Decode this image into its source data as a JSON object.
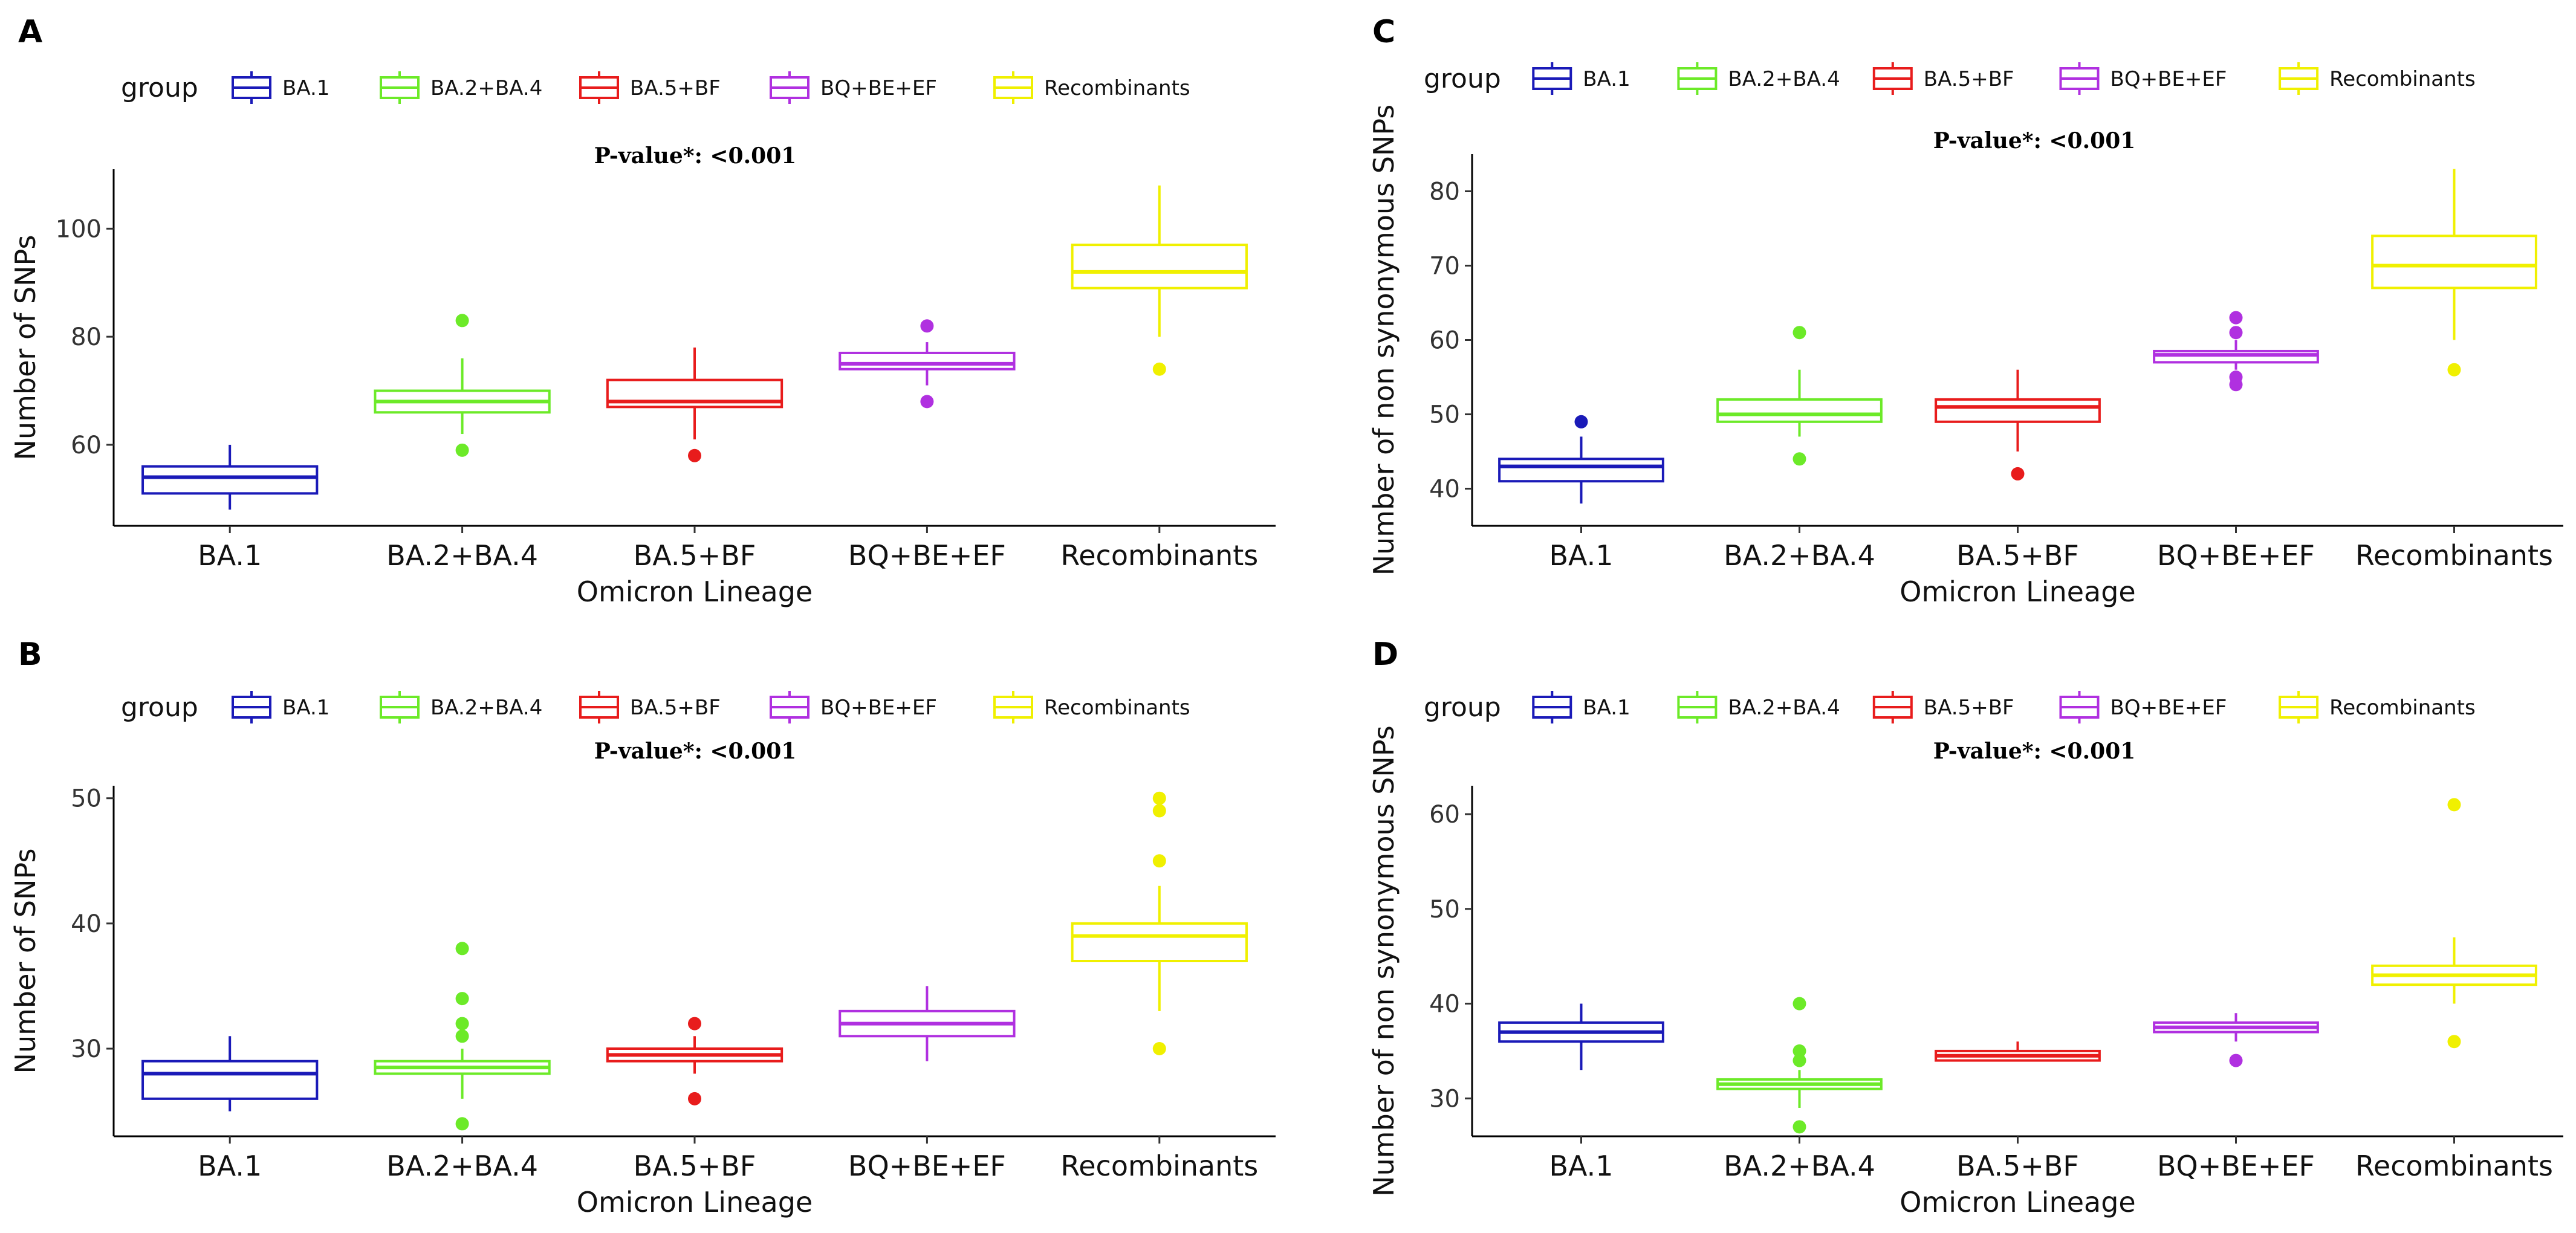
{
  "figure": {
    "legend_title": "group",
    "groups": [
      "BA.1",
      "BA.2+BA.4",
      "BA.5+BF",
      "BQ+BE+EF",
      "Recombinants"
    ],
    "colors": {
      "BA.1": "#1a1ab8",
      "BA.2+BA.4": "#6cea28",
      "BA.5+BF": "#e81c1c",
      "BQ+BE+EF": "#b030e0",
      "Recombinants": "#f0f000"
    }
  },
  "chart_data": [
    {
      "type": "box",
      "panel": "A",
      "title": "P-value*: <0.001",
      "xlabel": "Omicron Lineage",
      "ylabel": "Number of SNPs",
      "ylim": [
        45,
        111
      ],
      "yticks": [
        60,
        80,
        100
      ],
      "categories": [
        "BA.1",
        "BA.2+BA.4",
        "BA.5+BF",
        "BQ+BE+EF",
        "Recombinants"
      ],
      "boxes": [
        {
          "lower_whisker": 48,
          "q1": 51,
          "median": 54,
          "q3": 56,
          "upper_whisker": 60,
          "outliers": []
        },
        {
          "lower_whisker": 62,
          "q1": 66,
          "median": 68,
          "q3": 70,
          "upper_whisker": 76,
          "outliers": [
            59,
            83
          ]
        },
        {
          "lower_whisker": 61,
          "q1": 67,
          "median": 68,
          "q3": 72,
          "upper_whisker": 78,
          "outliers": [
            58
          ]
        },
        {
          "lower_whisker": 71,
          "q1": 74,
          "median": 75,
          "q3": 77,
          "upper_whisker": 79,
          "outliers": [
            68,
            82
          ]
        },
        {
          "lower_whisker": 80,
          "q1": 89,
          "median": 92,
          "q3": 97,
          "upper_whisker": 108,
          "outliers": [
            74
          ]
        }
      ]
    },
    {
      "type": "box",
      "panel": "B",
      "title": "P-value*: <0.001",
      "xlabel": "Omicron Lineage",
      "ylabel": "Number of SNPs",
      "ylim": [
        23,
        51
      ],
      "yticks": [
        30,
        40,
        50
      ],
      "categories": [
        "BA.1",
        "BA.2+BA.4",
        "BA.5+BF",
        "BQ+BE+EF",
        "Recombinants"
      ],
      "boxes": [
        {
          "lower_whisker": 25,
          "q1": 26,
          "median": 28,
          "q3": 29,
          "upper_whisker": 31,
          "outliers": []
        },
        {
          "lower_whisker": 26,
          "q1": 28,
          "median": 28.5,
          "q3": 29,
          "upper_whisker": 30,
          "outliers": [
            24,
            31,
            32,
            34,
            38
          ]
        },
        {
          "lower_whisker": 28,
          "q1": 29,
          "median": 29.5,
          "q3": 30,
          "upper_whisker": 31,
          "outliers": [
            26,
            32
          ]
        },
        {
          "lower_whisker": 29,
          "q1": 31,
          "median": 32,
          "q3": 33,
          "upper_whisker": 35,
          "outliers": []
        },
        {
          "lower_whisker": 33,
          "q1": 37,
          "median": 39,
          "q3": 40,
          "upper_whisker": 43,
          "outliers": [
            30,
            45,
            49,
            50
          ]
        }
      ]
    },
    {
      "type": "box",
      "panel": "C",
      "title": "P-value*: <0.001",
      "xlabel": "Omicron Lineage",
      "ylabel": "Number of non synonymous SNPs",
      "ylim": [
        35,
        85
      ],
      "yticks": [
        40,
        50,
        60,
        70,
        80
      ],
      "categories": [
        "BA.1",
        "BA.2+BA.4",
        "BA.5+BF",
        "BQ+BE+EF",
        "Recombinants"
      ],
      "boxes": [
        {
          "lower_whisker": 38,
          "q1": 41,
          "median": 43,
          "q3": 44,
          "upper_whisker": 47,
          "outliers": [
            49
          ]
        },
        {
          "lower_whisker": 47,
          "q1": 49,
          "median": 50,
          "q3": 52,
          "upper_whisker": 56,
          "outliers": [
            44,
            61
          ]
        },
        {
          "lower_whisker": 45,
          "q1": 49,
          "median": 51,
          "q3": 52,
          "upper_whisker": 56,
          "outliers": [
            42
          ]
        },
        {
          "lower_whisker": 56,
          "q1": 57,
          "median": 58,
          "q3": 58.5,
          "upper_whisker": 60,
          "outliers": [
            54,
            55,
            61,
            63
          ]
        },
        {
          "lower_whisker": 60,
          "q1": 67,
          "median": 70,
          "q3": 74,
          "upper_whisker": 83,
          "outliers": [
            56
          ]
        }
      ]
    },
    {
      "type": "box",
      "panel": "D",
      "title": "P-value*: <0.001",
      "xlabel": "Omicron Lineage",
      "ylabel": "Number of non synonymous SNPs",
      "ylim": [
        26,
        63
      ],
      "yticks": [
        30,
        40,
        50,
        60
      ],
      "categories": [
        "BA.1",
        "BA.2+BA.4",
        "BA.5+BF",
        "BQ+BE+EF",
        "Recombinants"
      ],
      "boxes": [
        {
          "lower_whisker": 33,
          "q1": 36,
          "median": 37,
          "q3": 38,
          "upper_whisker": 40,
          "outliers": []
        },
        {
          "lower_whisker": 29,
          "q1": 31,
          "median": 31.5,
          "q3": 32,
          "upper_whisker": 33,
          "outliers": [
            27,
            34,
            35,
            40
          ]
        },
        {
          "lower_whisker": 34,
          "q1": 34,
          "median": 34.5,
          "q3": 35,
          "upper_whisker": 36,
          "outliers": []
        },
        {
          "lower_whisker": 36,
          "q1": 37,
          "median": 37.5,
          "q3": 38,
          "upper_whisker": 39,
          "outliers": [
            34
          ]
        },
        {
          "lower_whisker": 40,
          "q1": 42,
          "median": 43,
          "q3": 44,
          "upper_whisker": 47,
          "outliers": [
            36,
            61
          ]
        }
      ]
    }
  ]
}
